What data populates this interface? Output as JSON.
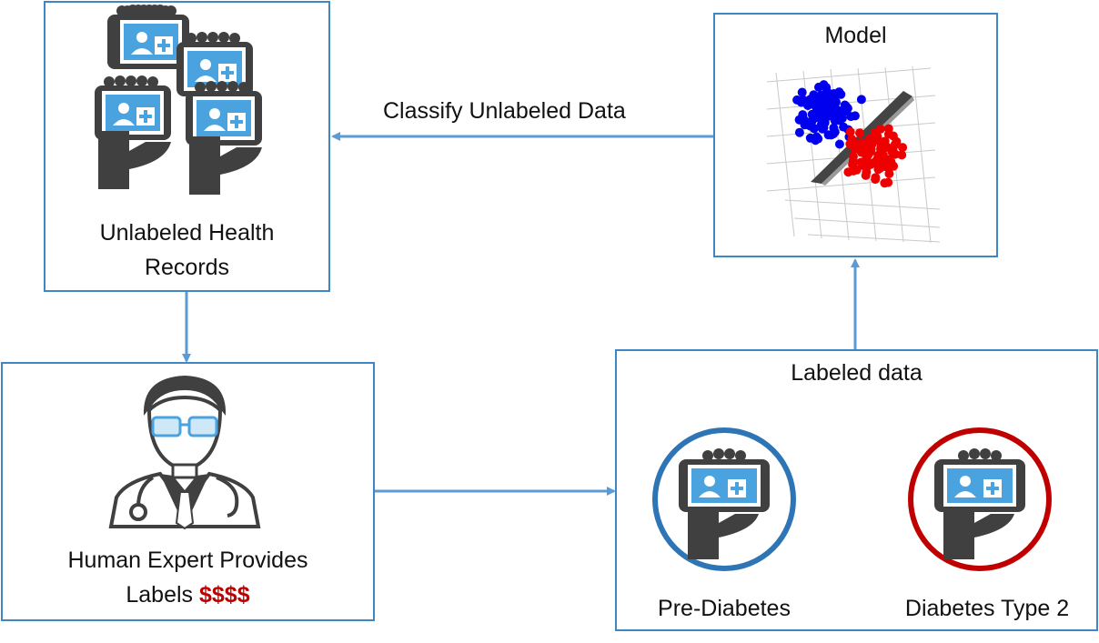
{
  "nodes": {
    "unlabeled": {
      "label_line1": "Unlabeled Health",
      "label_line2": "Records"
    },
    "model": {
      "label": "Model"
    },
    "expert": {
      "label_line1": "Human Expert Provides",
      "label_line2_prefix": "Labels",
      "label_cost": "$$$$"
    },
    "labeled": {
      "label": "Labeled data",
      "class_a": "Pre-Diabetes",
      "class_b": "Diabetes Type 2"
    }
  },
  "edges": {
    "model_to_unlabeled": {
      "label": "Classify Unlabeled Data"
    }
  },
  "colors": {
    "box_border": "#3f86c4",
    "arrow": "#5b9bd5",
    "cost_text": "#c00000",
    "pre_diabetes_ring": "#2e75b6",
    "diabetes_ring": "#c00000",
    "icon_dark": "#404040",
    "screen_blue": "#4aa3df",
    "scatter_blue": "#0000ee",
    "scatter_red": "#ee0000"
  },
  "icons": [
    "health-record-device-icon",
    "doctor-icon",
    "stethoscope-icon",
    "scatter-3d-icon"
  ]
}
